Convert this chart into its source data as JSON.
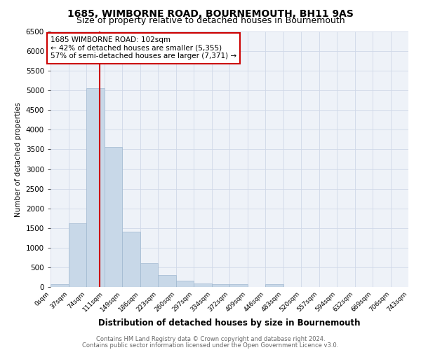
{
  "title": "1685, WIMBORNE ROAD, BOURNEMOUTH, BH11 9AS",
  "subtitle": "Size of property relative to detached houses in Bournemouth",
  "xlabel": "Distribution of detached houses by size in Bournemouth",
  "ylabel": "Number of detached properties",
  "footer_line1": "Contains HM Land Registry data © Crown copyright and database right 2024.",
  "footer_line2": "Contains public sector information licensed under the Open Government Licence v3.0.",
  "bin_labels": [
    "0sqm",
    "37sqm",
    "74sqm",
    "111sqm",
    "149sqm",
    "186sqm",
    "223sqm",
    "260sqm",
    "297sqm",
    "334sqm",
    "372sqm",
    "409sqm",
    "446sqm",
    "483sqm",
    "520sqm",
    "557sqm",
    "594sqm",
    "632sqm",
    "669sqm",
    "706sqm",
    "743sqm"
  ],
  "bar_values": [
    75,
    1620,
    5050,
    3570,
    1400,
    610,
    295,
    155,
    95,
    65,
    70,
    0,
    75,
    0,
    0,
    0,
    0,
    0,
    0,
    0
  ],
  "bar_color": "#c8d8e8",
  "bar_edge_color": "#a0b8d0",
  "annotation_box_text": "1685 WIMBORNE ROAD: 102sqm\n← 42% of detached houses are smaller (5,355)\n57% of semi-detached houses are larger (7,371) →",
  "vline_color": "#cc0000",
  "vline_x_bin": 2.757,
  "ylim": [
    0,
    6500
  ],
  "yticks": [
    0,
    500,
    1000,
    1500,
    2000,
    2500,
    3000,
    3500,
    4000,
    4500,
    5000,
    5500,
    6000,
    6500
  ],
  "grid_color": "#d0d8e8",
  "background_color": "#eef2f8",
  "title_fontsize": 10,
  "subtitle_fontsize": 9,
  "ann_fontsize": 7.5,
  "xlabel_fontsize": 8.5,
  "ylabel_fontsize": 7.5,
  "footer_fontsize": 6.0
}
